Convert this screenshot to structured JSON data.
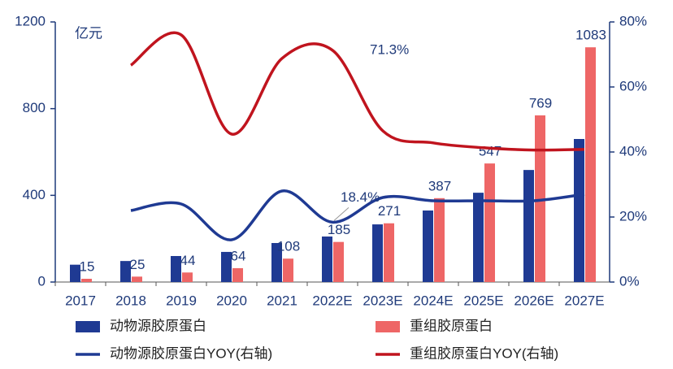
{
  "chart_data": {
    "type": "bar_line",
    "ylabel": "亿元",
    "categories": [
      "2017",
      "2018",
      "2019",
      "2020",
      "2021",
      "2022E",
      "2023E",
      "2024E",
      "2025E",
      "2026E",
      "2027E"
    ],
    "ylim": [
      0,
      1200
    ],
    "yticks": [
      0,
      400,
      800,
      1200
    ],
    "y2lim": [
      0,
      80
    ],
    "y2ticks": [
      {
        "value": 0,
        "label": "0%"
      },
      {
        "value": 20,
        "label": "20%"
      },
      {
        "value": 40,
        "label": "40%"
      },
      {
        "value": 60,
        "label": "60%"
      },
      {
        "value": 80,
        "label": "80%"
      }
    ],
    "series": [
      {
        "name": "动物源胶原蛋白",
        "type": "bar",
        "color": "#1f3a93",
        "values": [
          80,
          97,
          120,
          139,
          180,
          210,
          266,
          330,
          412,
          517,
          660
        ]
      },
      {
        "name": "重组胶原蛋白",
        "type": "bar",
        "color": "#ee6666",
        "values": [
          15,
          25,
          44,
          64,
          108,
          185,
          271,
          387,
          547,
          769,
          1083
        ]
      },
      {
        "name": "动物源胶原蛋白YOY(右轴)",
        "type": "line",
        "axis": "y2",
        "color": "#1f3a93",
        "values": [
          null,
          22,
          24,
          13,
          28,
          18.4,
          26,
          25,
          25,
          25,
          27
        ],
        "value_labels": [
          null,
          null,
          null,
          null,
          null,
          "18.4%",
          null,
          null,
          null,
          null,
          null
        ]
      },
      {
        "name": "重组胶原蛋白YOY(右轴)",
        "type": "line",
        "axis": "y2",
        "color": "#c0141e",
        "values": [
          null,
          66.7,
          76,
          45.5,
          68.8,
          71.3,
          46.5,
          42.8,
          41.3,
          40.6,
          40.8
        ],
        "value_labels": [
          null,
          null,
          null,
          null,
          null,
          "71.3%",
          null,
          null,
          null,
          null,
          null
        ]
      }
    ]
  }
}
